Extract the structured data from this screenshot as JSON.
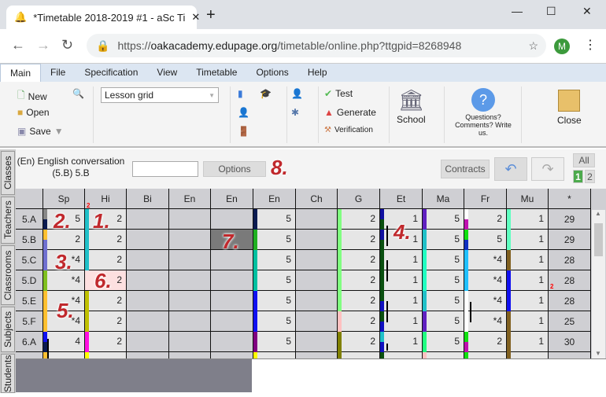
{
  "browser": {
    "tab_title": "*Timetable 2018-2019 #1 - aSc Ti",
    "url_prefix": "https://",
    "url_host": "oakacademy.edupage.org",
    "url_path": "/timetable/online.php?ttgpid=8268948",
    "avatar": "M"
  },
  "menu": [
    "Main",
    "File",
    "Specification",
    "View",
    "Timetable",
    "Options",
    "Help"
  ],
  "ribbon": {
    "new": "New",
    "open": "Open",
    "save": "Save",
    "view_select": "Lesson grid",
    "test": "Test",
    "generate": "Generate",
    "verification": "Verification",
    "school": "School",
    "questions": "Questions? Comments? Write us.",
    "close": "Close"
  },
  "toolbar": {
    "lesson_line1": "(En) English conversation",
    "lesson_line2": "(5.B) 5.B",
    "search_value": "",
    "options": "Options",
    "contracts": "Contracts",
    "all": "All",
    "page1": "1",
    "page2": "2"
  },
  "side_tabs": [
    "Classes",
    "Teachers",
    "Classrooms",
    "Subjects",
    "Students"
  ],
  "grid": {
    "columns": [
      "Sp",
      "Hi",
      "Bi",
      "En",
      "En",
      "En",
      "Ch",
      "G",
      "Et",
      "Ma",
      "Fr",
      "Mu",
      "*"
    ],
    "rows": [
      {
        "label": "5.A",
        "cells": [
          [
            "5",
            [
              "#888",
              "#0a1a50"
            ]
          ],
          [
            "2",
            [
              "#20c0c8"
            ]
          ],
          null,
          null,
          null,
          [
            "5",
            [
              "#0a1a50"
            ]
          ],
          null,
          [
            "2",
            [
              "#80ff80"
            ]
          ],
          [
            "1",
            [
              "#1010a0",
              "#0a5010"
            ]
          ],
          [
            "5",
            [
              "#6020c0"
            ]
          ],
          [
            "2",
            [
              "#fff",
              "#c010b0"
            ]
          ],
          [
            "1",
            [
              "#60ffc0"
            ]
          ]
        ],
        "total": "29"
      },
      {
        "label": "5.B",
        "cells": [
          [
            "2",
            [
              "#ffc030",
              "#7070d0"
            ]
          ],
          [
            "2",
            [
              "#20c0c8"
            ]
          ],
          null,
          null,
          "dark",
          [
            "5",
            [
              "#20b020"
            ]
          ],
          null,
          [
            "2",
            [
              "#80ff80"
            ]
          ],
          [
            "1",
            [
              "#1010a0",
              "#0a5010"
            ]
          ],
          [
            "5",
            [
              "#20c0c8"
            ]
          ],
          [
            "5",
            [
              "#10e010",
              "#1030c0"
            ]
          ],
          [
            "1",
            [
              "#60ffc0"
            ]
          ]
        ],
        "total": "29"
      },
      {
        "label": "5.C",
        "cells": [
          [
            "*4",
            [
              "#7070d0"
            ]
          ],
          [
            "2",
            [
              "#20c0c8"
            ]
          ],
          null,
          null,
          null,
          [
            "5",
            [
              "#00c0a0"
            ]
          ],
          null,
          [
            "2",
            [
              "#80ff80"
            ]
          ],
          [
            "1",
            [
              "#0a5010"
            ]
          ],
          [
            "5",
            [
              "#20ffc0"
            ]
          ],
          [
            "*4",
            [
              "#20c0ff"
            ]
          ],
          [
            "1",
            [
              "#806020"
            ]
          ]
        ],
        "total": "28"
      },
      {
        "label": "5.D",
        "cells": [
          [
            "*4",
            [
              "#80c020"
            ]
          ],
          [
            "2",
            [],
            "pink"
          ],
          null,
          null,
          null,
          [
            "5",
            [
              "#00c0a0"
            ]
          ],
          null,
          [
            "2",
            [
              "#80ff80"
            ]
          ],
          [
            "1",
            [
              "#0a5010"
            ]
          ],
          [
            "5",
            [
              "#20ffc0"
            ]
          ],
          [
            "*4",
            [
              "#20c0ff"
            ]
          ],
          [
            "1",
            [
              "#1010f0"
            ]
          ]
        ],
        "total": "28"
      },
      {
        "label": "5.E",
        "cells": [
          [
            "*4",
            [
              "#ffc030"
            ]
          ],
          [
            "2",
            [
              "#c0c000"
            ]
          ],
          null,
          null,
          null,
          [
            "5",
            [
              "#1010f0"
            ]
          ],
          null,
          [
            "2",
            [
              "#80ff80"
            ]
          ],
          [
            "1",
            [
              "#0a5010",
              "#1010c0"
            ]
          ],
          [
            "5",
            [
              "#20c0c8"
            ]
          ],
          [
            "*4",
            [
              "#fff"
            ]
          ],
          [
            "1",
            [
              "#1010f0"
            ]
          ]
        ],
        "total": "28"
      },
      {
        "label": "5.F",
        "cells": [
          [
            "*4",
            [
              "#ffc030"
            ]
          ],
          [
            "2",
            [
              "#c0c000"
            ]
          ],
          null,
          null,
          null,
          [
            "5",
            [
              "#1010f0"
            ]
          ],
          null,
          [
            "2",
            [
              "#ffc0c0"
            ]
          ],
          [
            "1",
            [
              "#0a5010",
              "#1010c0"
            ]
          ],
          [
            "5",
            [
              "#6020c0"
            ]
          ],
          [
            "*4",
            [
              "#fff"
            ]
          ],
          [
            "1",
            [
              "#806020"
            ]
          ]
        ],
        "total": "25"
      },
      {
        "label": "6.A",
        "cells": [
          [
            "4",
            [
              "#1010f0",
              "#0a1a50"
            ]
          ],
          [
            "2",
            [
              "#ff10e0"
            ]
          ],
          null,
          null,
          null,
          [
            "5",
            [
              "#800080"
            ]
          ],
          null,
          [
            "2",
            [
              "#808000"
            ]
          ],
          [
            "1",
            [
              "#20c0c8",
              "#1010c0"
            ]
          ],
          [
            "5",
            [
              "#20ff80"
            ]
          ],
          [
            "2",
            [
              "#10e010",
              "#c010b0"
            ]
          ],
          [
            "1",
            [
              "#806020"
            ]
          ]
        ],
        "total": "30"
      },
      {
        "label": "",
        "cells": [
          [
            "",
            [
              "#ffc030"
            ]
          ],
          [
            "",
            [
              "#ffff00"
            ]
          ],
          null,
          null,
          null,
          [
            "",
            [
              "#ffff00"
            ]
          ],
          null,
          [
            "",
            [
              "#808000"
            ]
          ],
          [
            "",
            [
              "#0a5010"
            ]
          ],
          [
            "",
            [
              "#ffc0c0"
            ]
          ],
          [
            "",
            [
              "#10e010"
            ]
          ],
          [
            "",
            [
              "#806020"
            ]
          ]
        ],
        "total": ""
      }
    ]
  },
  "annotations": [
    "1.",
    "2.",
    "3.",
    "4.",
    "5.",
    "6.",
    "7.",
    "8."
  ],
  "markers": {
    "hi_header": "2",
    "mu_row4": "2"
  }
}
